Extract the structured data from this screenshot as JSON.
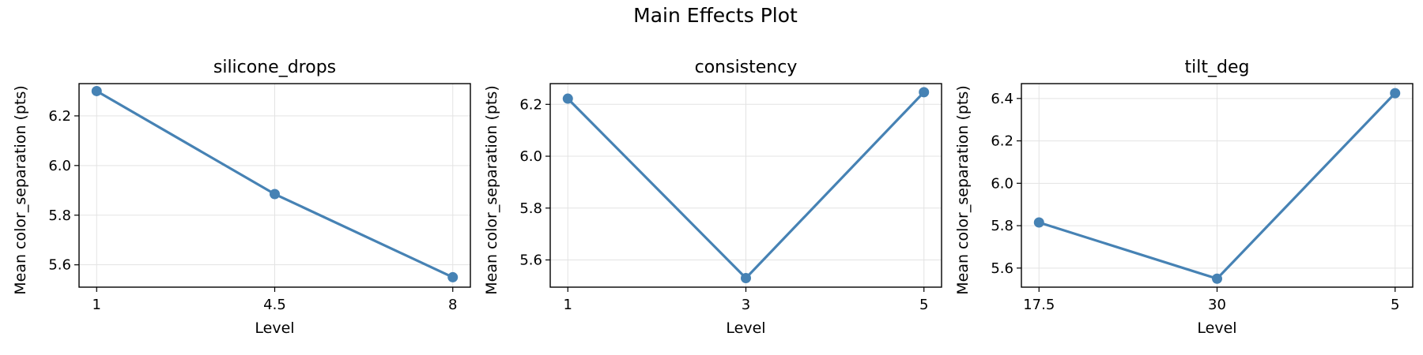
{
  "chart_data": {
    "type": "line",
    "title": "Main Effects Plot",
    "line_color": "#4682b4",
    "grid": true,
    "panels": [
      {
        "title": "silicone_drops",
        "xlabel": "Level",
        "ylabel": "Mean color_separation (pts)",
        "categories": [
          "1",
          "4.5",
          "8"
        ],
        "values": [
          6.3,
          5.885,
          5.55
        ],
        "ylim": [
          5.51,
          6.33
        ],
        "yticks": [
          5.6,
          5.8,
          6.0,
          6.2
        ]
      },
      {
        "title": "consistency",
        "xlabel": "Level",
        "ylabel": "Mean color_separation (pts)",
        "categories": [
          "1",
          "3",
          "5"
        ],
        "values": [
          6.222,
          5.53,
          6.247
        ],
        "ylim": [
          5.495,
          6.28
        ],
        "yticks": [
          5.6,
          5.8,
          6.0,
          6.2
        ]
      },
      {
        "title": "tilt_deg",
        "xlabel": "Level",
        "ylabel": "Mean color_separation (pts)",
        "categories": [
          "17.5",
          "30",
          "5"
        ],
        "values": [
          5.815,
          5.55,
          6.425
        ],
        "ylim": [
          5.51,
          6.47
        ],
        "yticks": [
          5.6,
          5.8,
          6.0,
          6.2,
          6.4
        ]
      }
    ]
  }
}
